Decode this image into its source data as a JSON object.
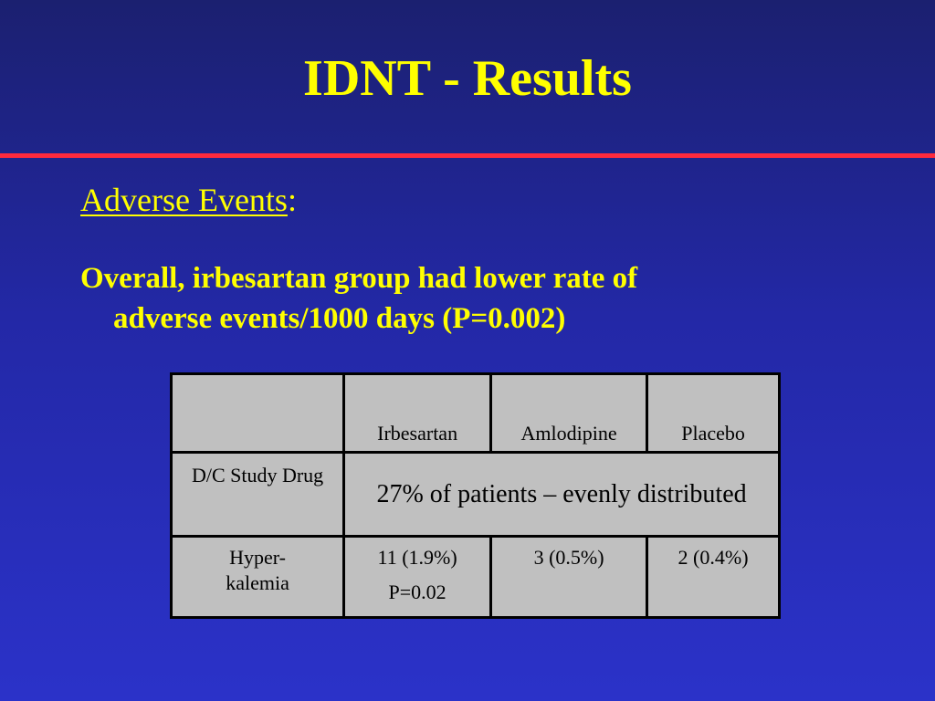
{
  "slide": {
    "title": "IDNT - Results",
    "subheading": "Adverse Events",
    "subheading_colon": ":",
    "body_line1": "Overall, irbesartan group had lower rate of",
    "body_line2": "adverse events/1000 days (P=0.002)"
  },
  "table": {
    "headers": [
      "",
      "Irbesartan",
      "Amlodipine",
      "Placebo"
    ],
    "rows": [
      {
        "label": "D/C Study Drug",
        "merged_value": "27% of patients – evenly distributed"
      },
      {
        "label_line1": "Hyper-",
        "label_line2": "kalemia",
        "irbesartan": "11 (1.9%)",
        "irbesartan_p": "P=0.02",
        "amlodipine": "3 (0.5%)",
        "placebo": "2 (0.4%)"
      }
    ]
  },
  "colors": {
    "background_top": "#1b2070",
    "background_bottom": "#2b32c9",
    "title_text": "#ffff00",
    "rule": "#ff2a3d",
    "table_fill": "#c0c0c0",
    "table_border": "#000000"
  }
}
